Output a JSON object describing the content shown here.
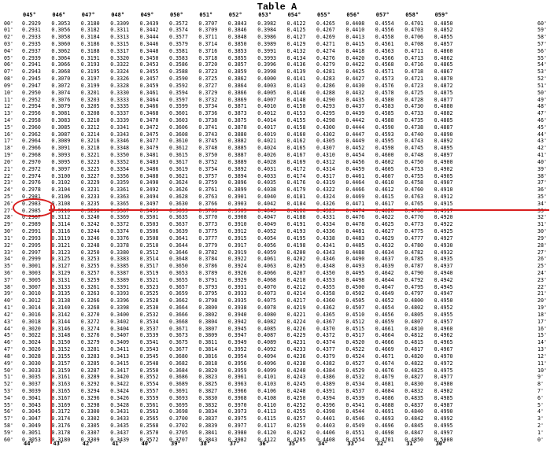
{
  "title": "Table A",
  "headers_top": [
    "045°",
    "046°",
    "047°",
    "048°",
    "049°",
    "050°",
    "051°",
    "052°",
    "053°",
    "054°",
    "055°",
    "056°",
    "057°",
    "058°",
    "059°"
  ],
  "headers_bottom": [
    "44°",
    "43°",
    "42°",
    "41°",
    "40°",
    "39°",
    "38°",
    "37°",
    "36°",
    "35°",
    "34°",
    "33°",
    "32°",
    "31°",
    "30°"
  ],
  "left_minutes": [
    "00'",
    "01'",
    "02'",
    "03'",
    "04'",
    "05'",
    "06'",
    "07'",
    "08'",
    "09'",
    "10'",
    "11'",
    "12'",
    "13'",
    "14'",
    "15'",
    "16'",
    "17'",
    "18'",
    "19'",
    "20'",
    "21'",
    "22'",
    "23'",
    "24'",
    "25'",
    "26'",
    "27'",
    "28'",
    "29'",
    "30'",
    "31'",
    "32'",
    "33'",
    "34'",
    "35'",
    "36'",
    "37'",
    "38'",
    "39'",
    "40'",
    "41'",
    "42'",
    "43'",
    "44'",
    "45'",
    "46'",
    "47'",
    "48'",
    "49'",
    "50'",
    "51'",
    "52'",
    "53'",
    "54'",
    "55'",
    "56'",
    "57'",
    "58'",
    "59'",
    "60'"
  ],
  "right_minutes": [
    "60'",
    "59'",
    "58'",
    "57'",
    "56'",
    "55'",
    "54'",
    "53'",
    "52'",
    "51'",
    "50'",
    "49'",
    "48'",
    "47'",
    "46'",
    "45'",
    "44'",
    "43'",
    "42'",
    "41'",
    "40'",
    "39'",
    "38'",
    "37'",
    "36'",
    "35'",
    "34'",
    "33'",
    "32'",
    "31'",
    "30'",
    "29'",
    "28'",
    "27'",
    "26'",
    "25'",
    "24'",
    "23'",
    "22'",
    "21'",
    "20'",
    "19'",
    "18'",
    "17'",
    "16'",
    "15'",
    "14'",
    "13'",
    "12'",
    "11'",
    "10'",
    "9'",
    "8'",
    "7'",
    "6'",
    "5'",
    "4'",
    "3'",
    "2'",
    "1'",
    "0'"
  ],
  "rows": [
    [
      "0.2929",
      "0.3053",
      "0.3180",
      "0.3309",
      "0.3439",
      "0.3572",
      "0.3707",
      "0.3843",
      "0.3982",
      "0.4122",
      "0.4265",
      "0.4408",
      "0.4554",
      "0.4701",
      "0.4850"
    ],
    [
      "0.2931",
      "0.3056",
      "0.3182",
      "0.3311",
      "0.3442",
      "0.3574",
      "0.3709",
      "0.3846",
      "0.3984",
      "0.4125",
      "0.4267",
      "0.4410",
      "0.4556",
      "0.4703",
      "0.4852"
    ],
    [
      "0.2933",
      "0.3058",
      "0.3184",
      "0.3313",
      "0.3444",
      "0.3577",
      "0.3711",
      "0.3848",
      "0.3986",
      "0.4127",
      "0.4269",
      "0.4413",
      "0.4558",
      "0.4706",
      "0.4855"
    ],
    [
      "0.2935",
      "0.3060",
      "0.3186",
      "0.3315",
      "0.3446",
      "0.3579",
      "0.3714",
      "0.3850",
      "0.3989",
      "0.4129",
      "0.4271",
      "0.4415",
      "0.4561",
      "0.4708",
      "0.4857"
    ],
    [
      "0.2937",
      "0.3062",
      "0.3188",
      "0.3317",
      "0.3448",
      "0.3581",
      "0.3716",
      "0.3853",
      "0.3991",
      "0.4132",
      "0.4274",
      "0.4418",
      "0.4563",
      "0.4711",
      "0.4860"
    ],
    [
      "0.2939",
      "0.3064",
      "0.3191",
      "0.3320",
      "0.3450",
      "0.3583",
      "0.3718",
      "0.3855",
      "0.3993",
      "0.4134",
      "0.4276",
      "0.4420",
      "0.4566",
      "0.4713",
      "0.4862"
    ],
    [
      "0.2941",
      "0.3066",
      "0.3193",
      "0.3322",
      "0.3453",
      "0.3586",
      "0.3720",
      "0.3857",
      "0.3996",
      "0.4136",
      "0.4279",
      "0.4422",
      "0.4568",
      "0.4716",
      "0.4865"
    ],
    [
      "0.2943",
      "0.3068",
      "0.3195",
      "0.3324",
      "0.3455",
      "0.3588",
      "0.3723",
      "0.3859",
      "0.3998",
      "0.4139",
      "0.4281",
      "0.4425",
      "0.4571",
      "0.4718",
      "0.4867"
    ],
    [
      "0.2945",
      "0.3070",
      "0.3197",
      "0.3326",
      "0.3457",
      "0.3590",
      "0.3725",
      "0.3862",
      "0.4000",
      "0.4141",
      "0.4283",
      "0.4427",
      "0.4573",
      "0.4721",
      "0.4870"
    ],
    [
      "0.2947",
      "0.3072",
      "0.3199",
      "0.3328",
      "0.3459",
      "0.3592",
      "0.3727",
      "0.3864",
      "0.4003",
      "0.4143",
      "0.4286",
      "0.4430",
      "0.4576",
      "0.4723",
      "0.4872"
    ],
    [
      "0.2950",
      "0.3074",
      "0.3201",
      "0.3330",
      "0.3461",
      "0.3594",
      "0.3729",
      "0.3866",
      "0.4005",
      "0.4146",
      "0.4288",
      "0.4432",
      "0.4578",
      "0.4725",
      "0.4875"
    ],
    [
      "0.2952",
      "0.3076",
      "0.3203",
      "0.3333",
      "0.3464",
      "0.3597",
      "0.3732",
      "0.3869",
      "0.4007",
      "0.4148",
      "0.4290",
      "0.4435",
      "0.4580",
      "0.4728",
      "0.4877"
    ],
    [
      "0.2954",
      "0.3079",
      "0.3205",
      "0.3335",
      "0.3466",
      "0.3599",
      "0.3734",
      "0.3871",
      "0.4010",
      "0.4150",
      "0.4293",
      "0.4437",
      "0.4583",
      "0.4730",
      "0.4880"
    ],
    [
      "0.2956",
      "0.3081",
      "0.3208",
      "0.3337",
      "0.3468",
      "0.3601",
      "0.3736",
      "0.3873",
      "0.4012",
      "0.4153",
      "0.4295",
      "0.4439",
      "0.4585",
      "0.4733",
      "0.4882"
    ],
    [
      "0.2958",
      "0.3083",
      "0.3210",
      "0.3339",
      "0.3470",
      "0.3603",
      "0.3738",
      "0.3875",
      "0.4014",
      "0.4155",
      "0.4298",
      "0.4442",
      "0.4588",
      "0.4735",
      "0.4885"
    ],
    [
      "0.2960",
      "0.3085",
      "0.3212",
      "0.3341",
      "0.3472",
      "0.3606",
      "0.3741",
      "0.3878",
      "0.4017",
      "0.4158",
      "0.4300",
      "0.4444",
      "0.4590",
      "0.4738",
      "0.4887"
    ],
    [
      "0.2962",
      "0.3087",
      "0.3214",
      "0.3343",
      "0.3475",
      "0.3608",
      "0.3743",
      "0.3880",
      "0.4019",
      "0.4160",
      "0.4302",
      "0.4447",
      "0.4593",
      "0.4740",
      "0.4890"
    ],
    [
      "0.2964",
      "0.3089",
      "0.3216",
      "0.3346",
      "0.3477",
      "0.3610",
      "0.3745",
      "0.3882",
      "0.4021",
      "0.4162",
      "0.4305",
      "0.4449",
      "0.4595",
      "0.4743",
      "0.4892"
    ],
    [
      "0.2966",
      "0.3091",
      "0.3218",
      "0.3348",
      "0.3479",
      "0.3612",
      "0.3748",
      "0.3885",
      "0.4024",
      "0.4165",
      "0.4307",
      "0.4452",
      "0.4598",
      "0.4745",
      "0.4895"
    ],
    [
      "0.2968",
      "0.3093",
      "0.3221",
      "0.3350",
      "0.3481",
      "0.3615",
      "0.3750",
      "0.3887",
      "0.4026",
      "0.4167",
      "0.4310",
      "0.4454",
      "0.4600",
      "0.4748",
      "0.4897"
    ],
    [
      "0.2970",
      "0.3095",
      "0.3223",
      "0.3352",
      "0.3483",
      "0.3617",
      "0.3752",
      "0.3889",
      "0.4028",
      "0.4169",
      "0.4312",
      "0.4456",
      "0.4602",
      "0.4750",
      "0.4900"
    ],
    [
      "0.2972",
      "0.3097",
      "0.3225",
      "0.3354",
      "0.3486",
      "0.3619",
      "0.3754",
      "0.3892",
      "0.4031",
      "0.4172",
      "0.4314",
      "0.4459",
      "0.4605",
      "0.4753",
      "0.4902"
    ],
    [
      "0.2974",
      "0.3100",
      "0.3227",
      "0.3356",
      "0.3488",
      "0.3621",
      "0.3757",
      "0.3894",
      "0.4033",
      "0.4174",
      "0.4317",
      "0.4461",
      "0.4607",
      "0.4755",
      "0.4905"
    ],
    [
      "0.2976",
      "0.3102",
      "0.3229",
      "0.3359",
      "0.3490",
      "0.3624",
      "0.3759",
      "0.3896",
      "0.4035",
      "0.4176",
      "0.4319",
      "0.4464",
      "0.4610",
      "0.4758",
      "0.4907"
    ],
    [
      "0.2978",
      "0.3104",
      "0.3231",
      "0.3361",
      "0.3492",
      "0.3626",
      "0.3761",
      "0.3899",
      "0.4038",
      "0.4179",
      "0.4322",
      "0.4466",
      "0.4612",
      "0.4760",
      "0.4910"
    ],
    [
      "0.2981",
      "0.3106",
      "0.3233",
      "0.3363",
      "0.3494",
      "0.3628",
      "0.3763",
      "0.3901",
      "0.4040",
      "0.4181",
      "0.4324",
      "0.4469",
      "0.4615",
      "0.4763",
      "0.4912"
    ],
    [
      "0.2983",
      "0.3108",
      "0.3235",
      "0.3365",
      "0.3497",
      "0.3630",
      "0.3766",
      "0.3903",
      "0.4042",
      "0.4184",
      "0.4326",
      "0.4471",
      "0.4617",
      "0.4765",
      "0.4915"
    ],
    [
      "0.2985",
      "0.3110",
      "0.3238",
      "0.3367",
      "0.3499",
      "0.3633",
      "0.3768",
      "0.3905",
      "0.4045",
      "0.4186",
      "0.4329",
      "0.4474",
      "0.4620",
      "0.4768",
      "0.4917"
    ],
    [
      "0.2987",
      "0.3112",
      "0.3240",
      "0.3369",
      "0.3501",
      "0.3635",
      "0.3770",
      "0.3908",
      "0.4047",
      "0.4188",
      "0.4331",
      "0.4476",
      "0.4622",
      "0.4770",
      "0.4920"
    ],
    [
      "0.2989",
      "0.3114",
      "0.3242",
      "0.3372",
      "0.3503",
      "0.3637",
      "0.3773",
      "0.3910",
      "0.4049",
      "0.4191",
      "0.4334",
      "0.4478",
      "0.4625",
      "0.4773",
      "0.4922"
    ],
    [
      "0.2991",
      "0.3116",
      "0.3244",
      "0.3374",
      "0.3506",
      "0.3639",
      "0.3775",
      "0.3912",
      "0.4052",
      "0.4193",
      "0.4336",
      "0.4481",
      "0.4627",
      "0.4775",
      "0.4925"
    ],
    [
      "0.2993",
      "0.3119",
      "0.3246",
      "0.3376",
      "0.3508",
      "0.3641",
      "0.3777",
      "0.3915",
      "0.4054",
      "0.4195",
      "0.4338",
      "0.4483",
      "0.4629",
      "0.4777",
      "0.4927"
    ],
    [
      "0.2995",
      "0.3121",
      "0.3248",
      "0.3378",
      "0.3510",
      "0.3644",
      "0.3779",
      "0.3917",
      "0.4056",
      "0.4198",
      "0.4341",
      "0.4485",
      "0.4632",
      "0.4780",
      "0.4930"
    ],
    [
      "0.2997",
      "0.3123",
      "0.3250",
      "0.3380",
      "0.3512",
      "0.3646",
      "0.3782",
      "0.3919",
      "0.4059",
      "0.4200",
      "0.4343",
      "0.4488",
      "0.4634",
      "0.4782",
      "0.4932"
    ],
    [
      "0.2999",
      "0.3125",
      "0.3253",
      "0.3383",
      "0.3514",
      "0.3648",
      "0.3784",
      "0.3922",
      "0.4061",
      "0.4202",
      "0.4346",
      "0.4490",
      "0.4637",
      "0.4785",
      "0.4935"
    ],
    [
      "0.3001",
      "0.3127",
      "0.3255",
      "0.3385",
      "0.3517",
      "0.3650",
      "0.3786",
      "0.3924",
      "0.4063",
      "0.4205",
      "0.4348",
      "0.4493",
      "0.4639",
      "0.4787",
      "0.4937"
    ],
    [
      "0.3003",
      "0.3129",
      "0.3257",
      "0.3387",
      "0.3519",
      "0.3653",
      "0.3789",
      "0.3926",
      "0.4066",
      "0.4207",
      "0.4350",
      "0.4495",
      "0.4642",
      "0.4790",
      "0.4940"
    ],
    [
      "0.3005",
      "0.3131",
      "0.3259",
      "0.3389",
      "0.3521",
      "0.3655",
      "0.3791",
      "0.3929",
      "0.4068",
      "0.4210",
      "0.4353",
      "0.4498",
      "0.4644",
      "0.4792",
      "0.4942"
    ],
    [
      "0.3007",
      "0.3133",
      "0.3261",
      "0.3391",
      "0.3523",
      "0.3657",
      "0.3793",
      "0.3931",
      "0.4070",
      "0.4212",
      "0.4355",
      "0.4500",
      "0.4647",
      "0.4795",
      "0.4945"
    ],
    [
      "0.3010",
      "0.3135",
      "0.3263",
      "0.3393",
      "0.3525",
      "0.3659",
      "0.3795",
      "0.3933",
      "0.4073",
      "0.4214",
      "0.4358",
      "0.4502",
      "0.4649",
      "0.4797",
      "0.4947"
    ],
    [
      "0.3012",
      "0.3138",
      "0.3266",
      "0.3396",
      "0.3528",
      "0.3662",
      "0.3798",
      "0.3935",
      "0.4075",
      "0.4217",
      "0.4360",
      "0.4505",
      "0.4652",
      "0.4800",
      "0.4950"
    ],
    [
      "0.3014",
      "0.3140",
      "0.3268",
      "0.3398",
      "0.3530",
      "0.3664",
      "0.3800",
      "0.3938",
      "0.4078",
      "0.4219",
      "0.4362",
      "0.4507",
      "0.4654",
      "0.4802",
      "0.4952"
    ],
    [
      "0.3016",
      "0.3142",
      "0.3270",
      "0.3400",
      "0.3532",
      "0.3666",
      "0.3802",
      "0.3940",
      "0.4080",
      "0.4221",
      "0.4365",
      "0.4510",
      "0.4656",
      "0.4805",
      "0.4955"
    ],
    [
      "0.3018",
      "0.3144",
      "0.3272",
      "0.3402",
      "0.3534",
      "0.3668",
      "0.3804",
      "0.3942",
      "0.4082",
      "0.4224",
      "0.4367",
      "0.4512",
      "0.4659",
      "0.4807",
      "0.4957"
    ],
    [
      "0.3020",
      "0.3146",
      "0.3274",
      "0.3404",
      "0.3537",
      "0.3671",
      "0.3807",
      "0.3945",
      "0.4085",
      "0.4226",
      "0.4370",
      "0.4515",
      "0.4661",
      "0.4810",
      "0.4960"
    ],
    [
      "0.3022",
      "0.3148",
      "0.3276",
      "0.3407",
      "0.3539",
      "0.3673",
      "0.3809",
      "0.3947",
      "0.4087",
      "0.4229",
      "0.4372",
      "0.4517",
      "0.4664",
      "0.4812",
      "0.4962"
    ],
    [
      "0.3024",
      "0.3150",
      "0.3279",
      "0.3409",
      "0.3541",
      "0.3675",
      "0.3811",
      "0.3949",
      "0.4089",
      "0.4231",
      "0.4374",
      "0.4520",
      "0.4666",
      "0.4815",
      "0.4965"
    ],
    [
      "0.3026",
      "0.3152",
      "0.3281",
      "0.3411",
      "0.3543",
      "0.3677",
      "0.3814",
      "0.3952",
      "0.4092",
      "0.4233",
      "0.4377",
      "0.4522",
      "0.4669",
      "0.4817",
      "0.4967"
    ],
    [
      "0.3028",
      "0.3155",
      "0.3283",
      "0.3413",
      "0.3545",
      "0.3680",
      "0.3816",
      "0.3954",
      "0.4094",
      "0.4236",
      "0.4379",
      "0.4524",
      "0.4671",
      "0.4820",
      "0.4970"
    ],
    [
      "0.3030",
      "0.3157",
      "0.3285",
      "0.3415",
      "0.3548",
      "0.3682",
      "0.3818",
      "0.3956",
      "0.4096",
      "0.4238",
      "0.4382",
      "0.4527",
      "0.4674",
      "0.4822",
      "0.4972"
    ],
    [
      "0.3033",
      "0.3159",
      "0.3287",
      "0.3417",
      "0.3550",
      "0.3684",
      "0.3820",
      "0.3959",
      "0.4099",
      "0.4240",
      "0.4384",
      "0.4529",
      "0.4676",
      "0.4825",
      "0.4975"
    ],
    [
      "0.3035",
      "0.3161",
      "0.3289",
      "0.3420",
      "0.3552",
      "0.3686",
      "0.3823",
      "0.3961",
      "0.4101",
      "0.4243",
      "0.4386",
      "0.4532",
      "0.4679",
      "0.4827",
      "0.4977"
    ],
    [
      "0.3037",
      "0.3163",
      "0.3292",
      "0.3422",
      "0.3554",
      "0.3689",
      "0.3825",
      "0.3963",
      "0.4103",
      "0.4245",
      "0.4389",
      "0.4534",
      "0.4681",
      "0.4830",
      "0.4980"
    ],
    [
      "0.3039",
      "0.3165",
      "0.3294",
      "0.3424",
      "0.3557",
      "0.3691",
      "0.3827",
      "0.3966",
      "0.4106",
      "0.4248",
      "0.4391",
      "0.4537",
      "0.4684",
      "0.4832",
      "0.4982"
    ],
    [
      "0.3041",
      "0.3167",
      "0.3296",
      "0.3426",
      "0.3559",
      "0.3693",
      "0.3830",
      "0.3968",
      "0.4108",
      "0.4250",
      "0.4394",
      "0.4539",
      "0.4686",
      "0.4835",
      "0.4985"
    ],
    [
      "0.3043",
      "0.3169",
      "0.3298",
      "0.3428",
      "0.3561",
      "0.3695",
      "0.3832",
      "0.3970",
      "0.4110",
      "0.4252",
      "0.4396",
      "0.4541",
      "0.4688",
      "0.4837",
      "0.4987"
    ],
    [
      "0.3045",
      "0.3172",
      "0.3300",
      "0.3431",
      "0.3563",
      "0.3698",
      "0.3834",
      "0.3973",
      "0.4113",
      "0.4255",
      "0.4398",
      "0.4544",
      "0.4691",
      "0.4840",
      "0.4990"
    ],
    [
      "0.3047",
      "0.3174",
      "0.3302",
      "0.3433",
      "0.3565",
      "0.3700",
      "0.3837",
      "0.3975",
      "0.4115",
      "0.4257",
      "0.4401",
      "0.4546",
      "0.4693",
      "0.4842",
      "0.4992"
    ],
    [
      "0.3049",
      "0.3176",
      "0.3305",
      "0.3435",
      "0.3568",
      "0.3702",
      "0.3839",
      "0.3977",
      "0.4117",
      "0.4259",
      "0.4403",
      "0.4549",
      "0.4696",
      "0.4845",
      "0.4995"
    ],
    [
      "0.3051",
      "0.3178",
      "0.3307",
      "0.3437",
      "0.3570",
      "0.3705",
      "0.3841",
      "0.3980",
      "0.4120",
      "0.4262",
      "0.4406",
      "0.4551",
      "0.4698",
      "0.4847",
      "0.4997"
    ],
    [
      "0.3053",
      "0.3180",
      "0.3309",
      "0.3439",
      "0.3572",
      "0.3707",
      "0.3843",
      "0.3982",
      "0.4122",
      "0.4265",
      "0.4408",
      "0.4554",
      "0.4701",
      "0.4850",
      "0.5000"
    ]
  ],
  "highlight": {
    "row": 27,
    "col": 0,
    "color": "#d81e1e"
  }
}
